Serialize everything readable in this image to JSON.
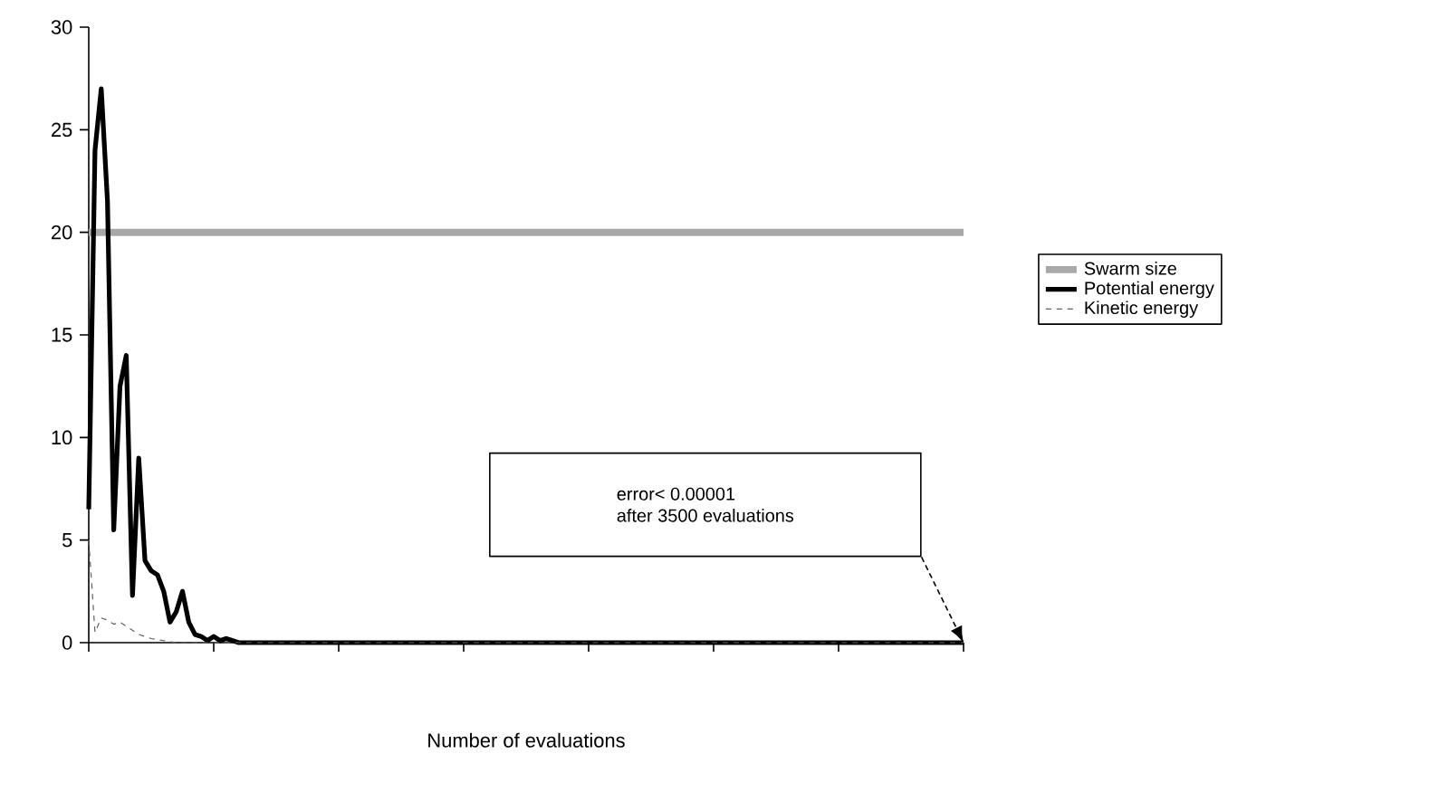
{
  "chart_data": {
    "type": "line",
    "xlabel": "Number of evaluations",
    "categories": [
      null,
      null,
      null,
      null,
      null,
      null,
      null,
      null,
      null,
      null,
      null,
      null,
      null,
      null,
      null,
      null,
      null,
      null,
      null,
      null,
      null,
      null,
      null,
      null,
      null,
      null,
      null,
      null,
      null,
      null,
      null,
      null,
      null,
      null,
      null,
      null,
      null,
      null,
      null,
      null,
      null,
      null,
      null,
      null,
      null,
      null,
      null,
      null,
      null,
      null,
      null,
      null,
      null,
      null,
      null,
      null,
      null,
      null,
      null,
      null,
      null,
      null,
      null,
      null,
      null,
      null,
      null,
      null,
      null,
      null,
      null,
      null,
      null,
      null,
      null,
      null,
      null,
      null,
      null,
      null,
      null,
      null,
      null,
      null,
      null,
      null,
      null,
      null,
      null,
      null,
      null,
      null,
      null,
      null,
      null,
      null,
      null,
      null,
      null,
      null,
      null,
      null,
      null,
      null,
      null,
      null,
      null,
      null,
      null,
      null,
      null,
      null,
      null,
      null,
      null,
      null,
      null,
      null,
      null,
      null,
      null,
      null,
      null,
      null,
      null,
      null,
      null,
      null,
      null,
      null,
      null,
      null,
      null,
      null,
      null,
      null,
      null,
      null,
      null,
      null,
      null
    ],
    "series": [
      {
        "name": "Swarm size",
        "color": "#a8a8a8",
        "line_style": "solid",
        "values": [
          20,
          20,
          20,
          20,
          20,
          20,
          20,
          20,
          20,
          20,
          20,
          20,
          20,
          20,
          20,
          20,
          20,
          20,
          20,
          20,
          20,
          20,
          20,
          20,
          20,
          20,
          20,
          20,
          20,
          20,
          20,
          20,
          20,
          20,
          20,
          20,
          20,
          20,
          20,
          20,
          20,
          20,
          20,
          20,
          20,
          20,
          20,
          20,
          20,
          20,
          20,
          20,
          20,
          20,
          20,
          20,
          20,
          20,
          20,
          20,
          20,
          20,
          20,
          20,
          20,
          20,
          20,
          20,
          20,
          20,
          20,
          20,
          20,
          20,
          20,
          20,
          20,
          20,
          20,
          20,
          20,
          20,
          20,
          20,
          20,
          20,
          20,
          20,
          20,
          20,
          20,
          20,
          20,
          20,
          20,
          20,
          20,
          20,
          20,
          20,
          20,
          20,
          20,
          20,
          20,
          20,
          20,
          20,
          20,
          20,
          20,
          20,
          20,
          20,
          20,
          20,
          20,
          20,
          20,
          20,
          20,
          20,
          20,
          20,
          20,
          20,
          20,
          20,
          20,
          20,
          20,
          20,
          20,
          20,
          20,
          20,
          20,
          20,
          20,
          20,
          20
        ]
      },
      {
        "name": "Potential energy",
        "color": "#000000",
        "line_style": "solid",
        "values": [
          6.5,
          24,
          27,
          21.5,
          5.5,
          12.5,
          14,
          2.3,
          9,
          4,
          3.5,
          3.3,
          2.5,
          1,
          1.5,
          2.5,
          1,
          0.4,
          0.3,
          0.1,
          0.3,
          0.1,
          0.2,
          0.1,
          0,
          0,
          0,
          0,
          0,
          0,
          0,
          0,
          0,
          0,
          0,
          0,
          0,
          0,
          0,
          0,
          0,
          0,
          0,
          0,
          0,
          0,
          0,
          0,
          0,
          0,
          0,
          0,
          0,
          0,
          0,
          0,
          0,
          0,
          0,
          0,
          0,
          0,
          0,
          0,
          0,
          0,
          0,
          0,
          0,
          0,
          0,
          0,
          0,
          0,
          0,
          0,
          0,
          0,
          0,
          0,
          0,
          0,
          0,
          0,
          0,
          0,
          0,
          0,
          0,
          0,
          0,
          0,
          0,
          0,
          0,
          0,
          0,
          0,
          0,
          0,
          0,
          0,
          0,
          0,
          0,
          0,
          0,
          0,
          0,
          0,
          0,
          0,
          0,
          0,
          0,
          0,
          0,
          0,
          0,
          0,
          0,
          0,
          0,
          0,
          0,
          0,
          0,
          0,
          0,
          0,
          0,
          0,
          0,
          0,
          0,
          0,
          0,
          0,
          0,
          0,
          0
        ]
      },
      {
        "name": "Kinetic energy",
        "color": "#606060",
        "line_style": "dashed",
        "values": [
          5,
          0.5,
          1.2,
          1.1,
          0.9,
          1,
          0.8,
          0.6,
          0.4,
          0.3,
          0.2,
          0.15,
          0.1,
          0.05,
          0,
          0,
          0,
          0,
          0,
          0,
          0,
          0,
          0,
          0,
          0,
          0,
          0,
          0,
          0,
          0,
          0,
          0,
          0,
          0,
          0,
          0,
          0,
          0,
          0,
          0,
          0,
          0,
          0,
          0,
          0,
          0,
          0,
          0,
          0,
          0,
          0,
          0,
          0,
          0,
          0,
          0,
          0,
          0,
          0,
          0,
          0,
          0,
          0,
          0,
          0,
          0,
          0,
          0,
          0,
          0,
          0,
          0,
          0,
          0,
          0,
          0,
          0,
          0,
          0,
          0,
          0,
          0,
          0,
          0,
          0,
          0,
          0,
          0,
          0,
          0,
          0,
          0,
          0,
          0,
          0,
          0,
          0,
          0,
          0,
          0,
          0,
          0,
          0,
          0,
          0,
          0,
          0,
          0,
          0,
          0,
          0,
          0,
          0,
          0,
          0,
          0,
          0,
          0,
          0,
          0,
          0,
          0,
          0,
          0,
          0,
          0,
          0,
          0,
          0,
          0,
          0,
          0,
          0,
          0,
          0,
          0,
          0,
          0,
          0,
          0,
          0
        ]
      }
    ],
    "ylim": [
      0,
      30
    ],
    "yticks": [
      0,
      5,
      10,
      15,
      20,
      25,
      30
    ],
    "tick_labels": "y",
    "grid": false,
    "legend": "right",
    "marker": "none",
    "annotations": [
      "error< 0.00001",
      "after 3500 evaluations"
    ]
  }
}
